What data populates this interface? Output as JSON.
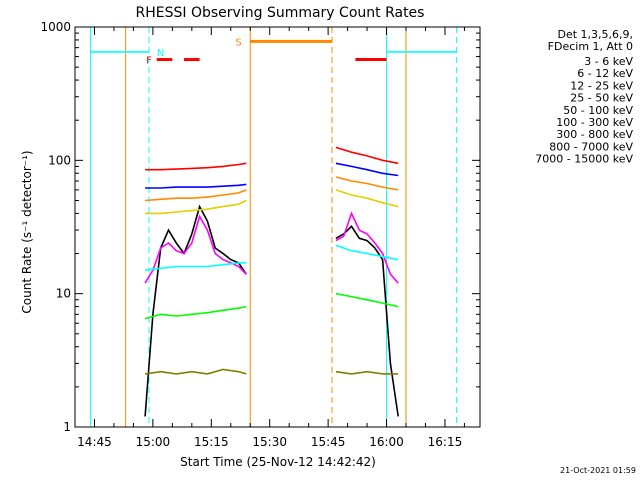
{
  "chart_data": {
    "type": "line",
    "title": "RHESSI Observing Summary Count Rates",
    "xlabel": "Start Time (25-Nov-12 14:42:42)",
    "ylabel": "Count Rate (s⁻¹ detector⁻¹)",
    "yscale": "log",
    "ylim": [
      1,
      1000
    ],
    "xlim": [
      "14:40",
      "16:24"
    ],
    "x_ticks": [
      "14:45",
      "15:00",
      "15:15",
      "15:30",
      "15:45",
      "16:00",
      "16:15"
    ],
    "y_ticks": [
      "1",
      "10",
      "100",
      "1000"
    ],
    "legend_header": [
      "Det 1,3,5,6,9,",
      "FDecim 1, Att 0"
    ],
    "legend_position": "right",
    "timestamp": "21-Oct-2021 01:59",
    "series": [
      {
        "name": "3 - 6 keV",
        "color": "#000000",
        "segments": [
          {
            "x": [
              "14:58",
              "15:00",
              "15:02",
              "15:04",
              "15:06",
              "15:08",
              "15:10",
              "15:12",
              "15:14",
              "15:16",
              "15:18",
              "15:20",
              "15:22",
              "15:24"
            ],
            "y": [
              1.2,
              7,
              22,
              30,
              24,
              20,
              28,
              45,
              35,
              22,
              20,
              18,
              17,
              14
            ]
          },
          {
            "x": [
              "15:47",
              "15:49",
              "15:51",
              "15:53",
              "15:55",
              "15:57",
              "15:59",
              "16:01",
              "16:03"
            ],
            "y": [
              26,
              28,
              32,
              26,
              25,
              22,
              18,
              3,
              1.2
            ]
          }
        ]
      },
      {
        "name": "6 - 12 keV",
        "color": "#ff00ff",
        "segments": [
          {
            "x": [
              "14:58",
              "15:00",
              "15:02",
              "15:04",
              "15:06",
              "15:08",
              "15:10",
              "15:12",
              "15:14",
              "15:16",
              "15:18",
              "15:20",
              "15:22",
              "15:24"
            ],
            "y": [
              12,
              15,
              22,
              24,
              21,
              20,
              24,
              38,
              30,
              20,
              18,
              17,
              16,
              14
            ]
          },
          {
            "x": [
              "15:47",
              "15:49",
              "15:51",
              "15:53",
              "15:55",
              "15:57",
              "15:59",
              "16:01",
              "16:03"
            ],
            "y": [
              25,
              27,
              40,
              30,
              28,
              24,
              20,
              14,
              12
            ]
          }
        ]
      },
      {
        "name": "12 - 25 keV",
        "color": "#00ff00",
        "segments": [
          {
            "x": [
              "14:58",
              "15:02",
              "15:06",
              "15:10",
              "15:14",
              "15:18",
              "15:22",
              "15:24"
            ],
            "y": [
              6.5,
              7,
              6.8,
              7,
              7.2,
              7.5,
              7.8,
              8
            ]
          },
          {
            "x": [
              "15:47",
              "15:51",
              "15:55",
              "15:59",
              "16:03"
            ],
            "y": [
              10,
              9.5,
              9,
              8.5,
              8
            ]
          }
        ]
      },
      {
        "name": "25 - 50 keV",
        "color": "#00ffff",
        "segments": [
          {
            "x": [
              "14:44",
              "14:48",
              "14:52",
              "14:56",
              "14:59"
            ],
            "y": [
              650,
              650,
              650,
              650,
              650
            ]
          },
          {
            "x": [
              "14:58",
              "15:02",
              "15:06",
              "15:10",
              "15:14",
              "15:18",
              "15:22",
              "15:24"
            ],
            "y": [
              15,
              15.5,
              16,
              16,
              16,
              16.5,
              17,
              17
            ]
          },
          {
            "x": [
              "15:47",
              "15:51",
              "15:55",
              "15:59",
              "16:03"
            ],
            "y": [
              23,
              21,
              20,
              19,
              18
            ]
          },
          {
            "x": [
              "16:00",
              "16:04",
              "16:08",
              "16:12",
              "16:18"
            ],
            "y": [
              650,
              650,
              650,
              650,
              650
            ]
          }
        ]
      },
      {
        "name": "50 - 100 keV",
        "color": "#e0d000",
        "segments": [
          {
            "x": [
              "14:58",
              "15:02",
              "15:06",
              "15:10",
              "15:14",
              "15:18",
              "15:22",
              "15:24"
            ],
            "y": [
              40,
              40,
              41,
              42,
              43,
              45,
              47,
              50
            ]
          },
          {
            "x": [
              "15:47",
              "15:51",
              "15:55",
              "15:59",
              "16:03"
            ],
            "y": [
              60,
              55,
              52,
              48,
              45
            ]
          }
        ]
      },
      {
        "name": "100 - 300 keV",
        "color": "#ff8800",
        "segments": [
          {
            "x": [
              "14:58",
              "15:02",
              "15:06",
              "15:10",
              "15:14",
              "15:18",
              "15:22",
              "15:24"
            ],
            "y": [
              50,
              51,
              52,
              52,
              53,
              55,
              57,
              60
            ]
          },
          {
            "x": [
              "15:47",
              "15:51",
              "15:55",
              "15:59",
              "16:03"
            ],
            "y": [
              75,
              70,
              67,
              63,
              60
            ]
          }
        ]
      },
      {
        "name": "300 - 800 keV",
        "color": "#0000ff",
        "segments": [
          {
            "x": [
              "14:58",
              "15:02",
              "15:06",
              "15:10",
              "15:14",
              "15:18",
              "15:22",
              "15:24"
            ],
            "y": [
              62,
              62,
              63,
              63,
              63,
              64,
              65,
              66
            ]
          },
          {
            "x": [
              "15:47",
              "15:51",
              "15:55",
              "15:59",
              "16:03"
            ],
            "y": [
              95,
              90,
              85,
              80,
              77
            ]
          }
        ]
      },
      {
        "name": "800 - 7000 keV",
        "color": "#ff0000",
        "segments": [
          {
            "x": [
              "14:58",
              "15:02",
              "15:06",
              "15:10",
              "15:14",
              "15:18",
              "15:22",
              "15:24"
            ],
            "y": [
              85,
              85,
              86,
              87,
              88,
              90,
              93,
              95
            ]
          },
          {
            "x": [
              "15:47",
              "15:51",
              "15:55",
              "15:59",
              "16:03"
            ],
            "y": [
              125,
              115,
              108,
              100,
              95
            ]
          }
        ]
      },
      {
        "name": "7000 - 15000 keV",
        "color": "#808000",
        "segments": [
          {
            "x": [
              "14:58",
              "15:02",
              "15:06",
              "15:10",
              "15:14",
              "15:18",
              "15:22",
              "15:24"
            ],
            "y": [
              2.5,
              2.6,
              2.5,
              2.6,
              2.5,
              2.7,
              2.6,
              2.5
            ]
          },
          {
            "x": [
              "15:47",
              "15:51",
              "15:55",
              "15:59",
              "16:03"
            ],
            "y": [
              2.6,
              2.5,
              2.6,
              2.5,
              2.5
            ]
          }
        ]
      }
    ],
    "flags": [
      {
        "label": "F",
        "color": "#ff0000",
        "spans": [
          [
            "15:01",
            "15:05"
          ],
          [
            "15:08",
            "15:12"
          ],
          [
            "15:52",
            "16:00"
          ]
        ],
        "y": 570,
        "label_x": "14:59"
      },
      {
        "label": "N",
        "color": "#00ffff",
        "spans": [],
        "y": 650,
        "label_x": "15:02"
      },
      {
        "label": "S",
        "color": "#ff8800",
        "spans": [
          [
            "15:25",
            "15:46"
          ]
        ],
        "y": 780,
        "label_x": "15:22"
      }
    ],
    "vlines": [
      {
        "x": "14:44",
        "color": "#00ffff",
        "style": "solid"
      },
      {
        "x": "14:59",
        "color": "#00ffff",
        "style": "dashed"
      },
      {
        "x": "16:00",
        "color": "#00ffff",
        "style": "solid"
      },
      {
        "x": "16:18",
        "color": "#00ffff",
        "style": "dashed"
      },
      {
        "x": "15:25",
        "color": "#ff8800",
        "style": "solid"
      },
      {
        "x": "15:46",
        "color": "#ff8800",
        "style": "dashed"
      },
      {
        "x": "14:53",
        "color": "#ff8800",
        "style": "solid"
      },
      {
        "x": "16:05",
        "color": "#ff8800",
        "style": "solid"
      }
    ]
  }
}
